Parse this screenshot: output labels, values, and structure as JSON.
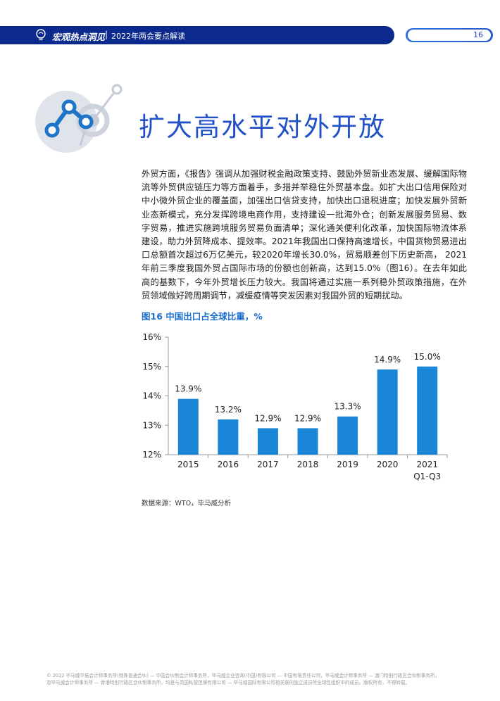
{
  "header": {
    "section": "宏观热点洞见",
    "separator": "|",
    "title": "2022年两会要点解读",
    "page_number": "16",
    "colors": {
      "band": "#0c2a8e",
      "pill": "#2e6fe0",
      "accent_text": "#1e49c3"
    }
  },
  "section_title": "扩大高水平对外开放",
  "body_text": "外贸方面，《报告》强调从加强财税金融政策支持、鼓励外贸新业态发展、缓解国际物流等外贸供应链压力等方面着手，多措并举稳住外贸基本盘。如扩大出口信用保险对中小微外贸企业的覆盖面，加强出口信贷支持，加快出口退税进度；加快发展外贸新业态新模式，充分发挥跨境电商作用，支持建设一批海外仓；创新发展服务贸易、数字贸易，推进实施跨境服务贸易负面清单；深化通关便利化改革，加快国际物流体系建设，助力外贸降成本、提效率。2021年我国出口保持高速增长，中国货物贸易进出口总额首次超过6万亿美元，较2020年增长30.0%，贸易顺差创下历史新高， 2021年前三季度我国外贸占国际市场的份额也创新高，达到15.0%（图16）。在去年如此高的基数下，今年外贸增长压力较大。我国将通过实施一系列稳外贸政策措施，在外贸领域做好跨周期调节，减缓疫情等突发因素对我国外贸的短期扰动。",
  "figure": {
    "title": "图16  中国出口占全球比重，%",
    "source": "数据来源：WTO，毕马威分析"
  },
  "chart_data": {
    "type": "bar",
    "title": "图16  中国出口占全球比重，%",
    "categories": [
      "2015",
      "2016",
      "2017",
      "2018",
      "2019",
      "2020",
      "2021"
    ],
    "category_sublabels": [
      "",
      "",
      "",
      "",
      "",
      "",
      "Q1-Q3"
    ],
    "values": [
      13.9,
      13.2,
      12.9,
      12.9,
      13.3,
      14.9,
      15.0
    ],
    "value_labels": [
      "13.9%",
      "13.2%",
      "12.9%",
      "12.9%",
      "13.3%",
      "14.9%",
      "15.0%"
    ],
    "ylim": [
      12,
      16
    ],
    "yticks": [
      12,
      13,
      14,
      15,
      16
    ],
    "ytick_labels": [
      "12%",
      "13%",
      "14%",
      "15%",
      "16%"
    ],
    "xlabel": "",
    "ylabel": "",
    "grid": false,
    "bar_color": "#1a86d8"
  },
  "footer": {
    "line1": "© 2022 毕马威华振会计师事务所(特殊普通合伙) — 中国合伙制会计师事务所，毕马威企业咨询(中国)有限公司 — 中国有限责任公司，毕马威会计师事务所 — 澳门特别行政区合伙制事务所，",
    "line2": "及毕马威会计师事务所 — 香港特别行政区合伙制事务所，均是与英国私营担保有限公司 — 毕马威国际有限公司相关联的独立成员所全球性组织中的成员。版权所有，不得转载。"
  }
}
